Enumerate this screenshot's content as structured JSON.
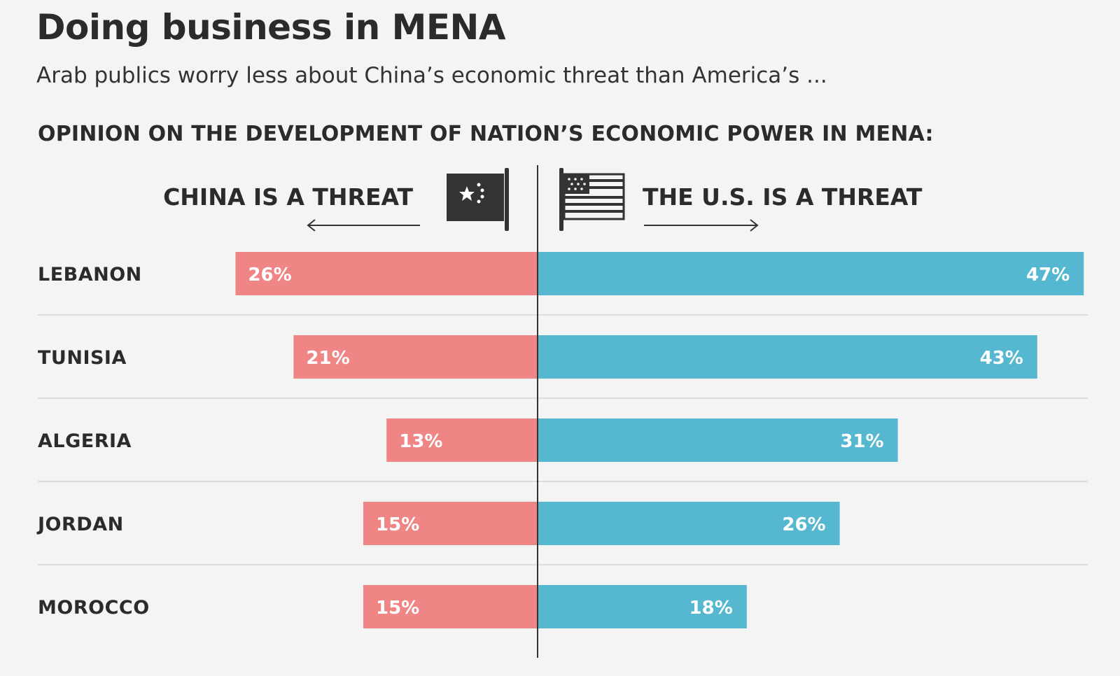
{
  "title": "Doing business in MENA",
  "subtitle": "Arab publics worry less about China’s economic threat than America’s ...",
  "section_title": "OPINION ON THE DEVELOPMENT OF NATION’S ECONOMIC POWER IN MENA:",
  "legend": {
    "left": "CHINA IS A THREAT",
    "right": "THE U.S. IS A THREAT",
    "left_icon": "china-flag-icon",
    "right_icon": "us-flag-icon"
  },
  "colors": {
    "china": "#f08585",
    "us": "#55b8d0",
    "text": "#2b2b2b",
    "background": "#f4f4f4",
    "flag": "#333333"
  },
  "chart_data": {
    "type": "bar",
    "orientation": "horizontal-diverging",
    "categories": [
      "LEBANON",
      "TUNISIA",
      "ALGERIA",
      "JORDAN",
      "MOROCCO"
    ],
    "series": [
      {
        "name": "CHINA IS A THREAT",
        "direction": "left",
        "values": [
          26,
          21,
          13,
          15,
          15
        ],
        "labels": [
          "26%",
          "21%",
          "13%",
          "15%",
          "15%"
        ]
      },
      {
        "name": "THE U.S. IS A THREAT",
        "direction": "right",
        "values": [
          47,
          43,
          31,
          26,
          18
        ],
        "labels": [
          "47%",
          "43%",
          "31%",
          "26%",
          "18%"
        ]
      }
    ],
    "unit": "%",
    "title": "OPINION ON THE DEVELOPMENT OF NATION’S ECONOMIC POWER IN MENA:"
  }
}
